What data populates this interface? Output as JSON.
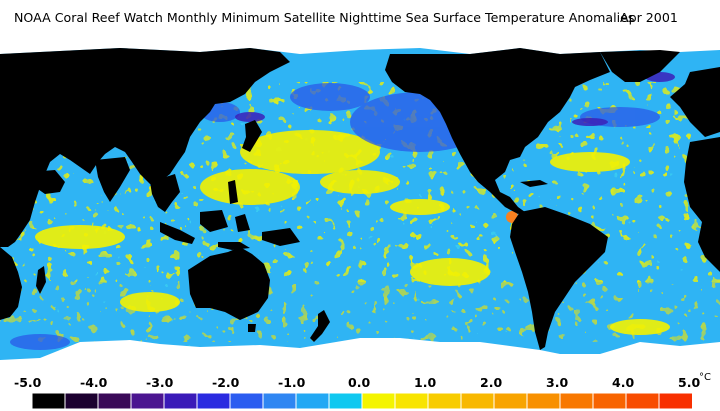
{
  "title": {
    "main": "NOAA Coral Reef Watch Monthly Minimum Satellite Nighttime Sea Surface Temperature Anomalies",
    "date": "Apr 2001"
  },
  "legend": {
    "labels": [
      "-5.0",
      "-4.0",
      "-3.0",
      "-2.0",
      "-1.0",
      "0.0",
      "1.0",
      "2.0",
      "3.0",
      "4.0",
      "5.0"
    ],
    "unit": "°C",
    "colors": [
      "#000000",
      "#1c0030",
      "#3a0a58",
      "#4b1590",
      "#3a1ab8",
      "#2a2ae0",
      "#2b5cf0",
      "#2f86f2",
      "#22a8f4",
      "#10c8f0",
      "#f4f400",
      "#f8e400",
      "#f8cc00",
      "#f8b800",
      "#f8a400",
      "#f89000",
      "#f87800",
      "#f86400",
      "#f84c00",
      "#f83000"
    ]
  },
  "map": {
    "ocean_colors": [
      "#2fb4f4",
      "#38c6f0",
      "#2a84ee",
      "#2a3ee0",
      "#f4f200",
      "#f0c400",
      "#3a1ab0",
      "#f87820"
    ],
    "land_color": "#000000",
    "ice_color": "#ffffff"
  }
}
